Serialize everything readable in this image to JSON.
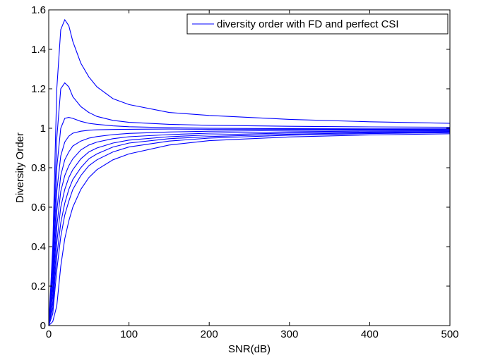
{
  "chart_data": {
    "type": "line",
    "xlabel": "SNR(dB)",
    "ylabel": "Diversity Order",
    "xlim": [
      0,
      500
    ],
    "ylim": [
      0,
      1.6
    ],
    "xticks": [
      0,
      100,
      200,
      300,
      400,
      500
    ],
    "yticks": [
      0,
      0.2,
      0.4,
      0.6,
      0.8,
      1,
      1.2,
      1.4,
      1.6
    ],
    "xtick_labels": [
      "0",
      "100",
      "200",
      "300",
      "400",
      "500"
    ],
    "ytick_labels": [
      "0",
      "0.2",
      "0.4",
      "0.6",
      "0.8",
      "1",
      "1.2",
      "1.4",
      "1.6"
    ],
    "grid": false,
    "legend": {
      "position": "top-right",
      "entries": [
        "diversity order with FD and perfect CSI"
      ]
    },
    "line_color": "#0000ff",
    "series": [
      {
        "name": "diversity order with FD and perfect CSI",
        "x": [
          0,
          5,
          10,
          15,
          20,
          25,
          30,
          40,
          50,
          60,
          80,
          100,
          150,
          200,
          300,
          400,
          500
        ],
        "y": [
          0,
          0.4,
          1.2,
          1.5,
          1.55,
          1.52,
          1.44,
          1.33,
          1.26,
          1.21,
          1.15,
          1.12,
          1.08,
          1.065,
          1.045,
          1.033,
          1.025
        ]
      },
      {
        "x": [
          0,
          5,
          10,
          15,
          20,
          25,
          30,
          40,
          50,
          60,
          80,
          100,
          150,
          200,
          300,
          400,
          500
        ],
        "y": [
          0,
          0.35,
          0.95,
          1.2,
          1.23,
          1.21,
          1.16,
          1.11,
          1.08,
          1.06,
          1.04,
          1.03,
          1.02,
          1.015,
          1.01,
          1.007,
          1.005
        ]
      },
      {
        "x": [
          0,
          5,
          10,
          15,
          20,
          25,
          30,
          40,
          50,
          60,
          80,
          100,
          150,
          200,
          300,
          400,
          500
        ],
        "y": [
          0,
          0.3,
          0.8,
          1.0,
          1.05,
          1.055,
          1.05,
          1.035,
          1.025,
          1.02,
          1.012,
          1.008,
          1.003,
          1.0,
          0.998,
          0.997,
          0.997
        ]
      },
      {
        "x": [
          0,
          5,
          10,
          15,
          20,
          25,
          30,
          40,
          50,
          60,
          80,
          100,
          150,
          200,
          300,
          400,
          500
        ],
        "y": [
          0,
          0.25,
          0.68,
          0.86,
          0.93,
          0.96,
          0.975,
          0.985,
          0.99,
          0.992,
          0.994,
          0.995,
          0.996,
          0.995,
          0.995,
          0.995,
          0.995
        ]
      },
      {
        "x": [
          0,
          5,
          10,
          15,
          20,
          25,
          30,
          40,
          50,
          60,
          80,
          100,
          150,
          200,
          300,
          400,
          500
        ],
        "y": [
          0,
          0.2,
          0.58,
          0.76,
          0.84,
          0.88,
          0.91,
          0.935,
          0.95,
          0.958,
          0.968,
          0.974,
          0.981,
          0.985,
          0.989,
          0.991,
          0.992
        ]
      },
      {
        "x": [
          0,
          5,
          10,
          15,
          20,
          25,
          30,
          40,
          50,
          60,
          80,
          100,
          150,
          200,
          300,
          400,
          500
        ],
        "y": [
          0,
          0.16,
          0.5,
          0.68,
          0.76,
          0.81,
          0.845,
          0.89,
          0.915,
          0.93,
          0.947,
          0.957,
          0.968,
          0.975,
          0.982,
          0.986,
          0.988
        ]
      },
      {
        "x": [
          0,
          5,
          10,
          15,
          20,
          25,
          30,
          40,
          50,
          60,
          80,
          100,
          150,
          200,
          300,
          400,
          500
        ],
        "y": [
          0,
          0.12,
          0.42,
          0.6,
          0.69,
          0.75,
          0.79,
          0.845,
          0.88,
          0.9,
          0.925,
          0.94,
          0.957,
          0.966,
          0.976,
          0.981,
          0.984
        ]
      },
      {
        "x": [
          0,
          5,
          10,
          15,
          20,
          25,
          30,
          40,
          50,
          60,
          80,
          100,
          150,
          200,
          300,
          400,
          500
        ],
        "y": [
          0,
          0.09,
          0.35,
          0.52,
          0.62,
          0.69,
          0.74,
          0.8,
          0.845,
          0.87,
          0.905,
          0.925,
          0.947,
          0.958,
          0.97,
          0.977,
          0.981
        ]
      },
      {
        "x": [
          0,
          5,
          10,
          15,
          20,
          25,
          30,
          40,
          50,
          60,
          80,
          100,
          150,
          200,
          300,
          400,
          500
        ],
        "y": [
          0,
          0.06,
          0.28,
          0.45,
          0.56,
          0.63,
          0.69,
          0.76,
          0.81,
          0.84,
          0.88,
          0.905,
          0.935,
          0.95,
          0.965,
          0.973,
          0.978
        ]
      },
      {
        "x": [
          0,
          5,
          10,
          15,
          20,
          25,
          30,
          40,
          50,
          60,
          80,
          100,
          150,
          200,
          300,
          400,
          500
        ],
        "y": [
          0,
          0.02,
          0.1,
          0.3,
          0.44,
          0.53,
          0.6,
          0.69,
          0.75,
          0.79,
          0.84,
          0.87,
          0.915,
          0.937,
          0.956,
          0.966,
          0.972
        ]
      }
    ]
  }
}
